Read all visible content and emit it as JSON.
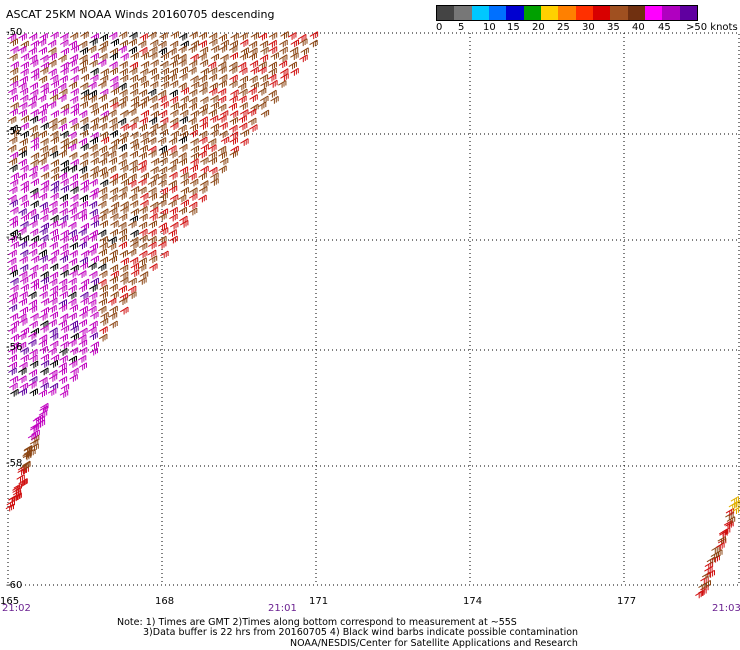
{
  "title": "ASCAT 25KM NOAA Winds 20160705 descending",
  "legend": {
    "labels": [
      "0",
      "5",
      "10",
      "15",
      "20",
      "25",
      "30",
      "35",
      "40",
      "45",
      ">50 knots"
    ],
    "colors": [
      "#444444",
      "#777777",
      "#00c8ff",
      "#0070ff",
      "#0000d0",
      "#00a000",
      "#ffd000",
      "#ff8000",
      "#ff3000",
      "#d80000",
      "#a05020",
      "#703010",
      "#ff00ff",
      "#b000c0",
      "#6000a0"
    ]
  },
  "map": {
    "lat_labels": [
      "-50",
      "-52",
      "-54",
      "-56",
      "-58",
      "-60"
    ],
    "lon_labels": [
      "165",
      "168",
      "171",
      "174",
      "177"
    ],
    "time_labels": [
      "21:02",
      "21:01",
      "21:03"
    ],
    "contamination_barb_color": "#000000",
    "high_wind_color": "#c000c0",
    "mid_wind_color": "#8b4513",
    "strong_wind_color": "#d01010"
  },
  "notes": {
    "line1": "Note: 1) Times are GMT 2)Times along bottom correspond to measurement at ~55S",
    "line2": "3)Data buffer is 22 hrs from 20160705 4) Black wind barbs indicate possible contamination",
    "line3": "NOAA/NESDIS/Center for Satellite Applications and Research"
  }
}
